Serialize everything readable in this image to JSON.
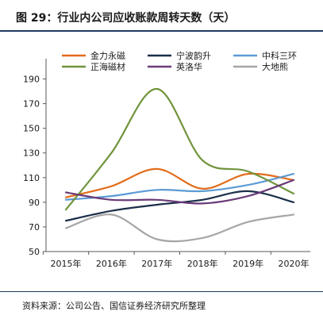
{
  "title": "图 29：行业内公司应收账款周转天数（天）",
  "source": "资料来源：公司公告、国信证券经济研究所整理",
  "chart_data": {
    "type": "line",
    "title": "",
    "xlabel": "",
    "ylabel": "",
    "x": [
      "2015年",
      "2016年",
      "2017年",
      "2018年",
      "2019年",
      "2020年"
    ],
    "ylim": [
      50,
      200
    ],
    "yticks": [
      50,
      70,
      90,
      110,
      130,
      150,
      170,
      190
    ],
    "grid": false,
    "legend_position": "top",
    "series": [
      {
        "name": "金力永磁",
        "color": "#e36c1a",
        "values": [
          94,
          103,
          117,
          101,
          113,
          108
        ]
      },
      {
        "name": "宁波韵升",
        "color": "#1c2f4a",
        "values": [
          75,
          83,
          88,
          92,
          99,
          90
        ]
      },
      {
        "name": "中科三环",
        "color": "#5b9bd5",
        "values": [
          92,
          95,
          100,
          99,
          104,
          113
        ]
      },
      {
        "name": "正海磁材",
        "color": "#70943b",
        "values": [
          84,
          130,
          182,
          124,
          115,
          97
        ]
      },
      {
        "name": "英洛华",
        "color": "#6a3a78",
        "values": [
          98,
          92,
          92,
          89,
          95,
          108
        ]
      },
      {
        "name": "大地熊",
        "color": "#a6a6a6",
        "values": [
          69,
          80,
          60,
          61,
          74,
          80
        ]
      }
    ]
  }
}
